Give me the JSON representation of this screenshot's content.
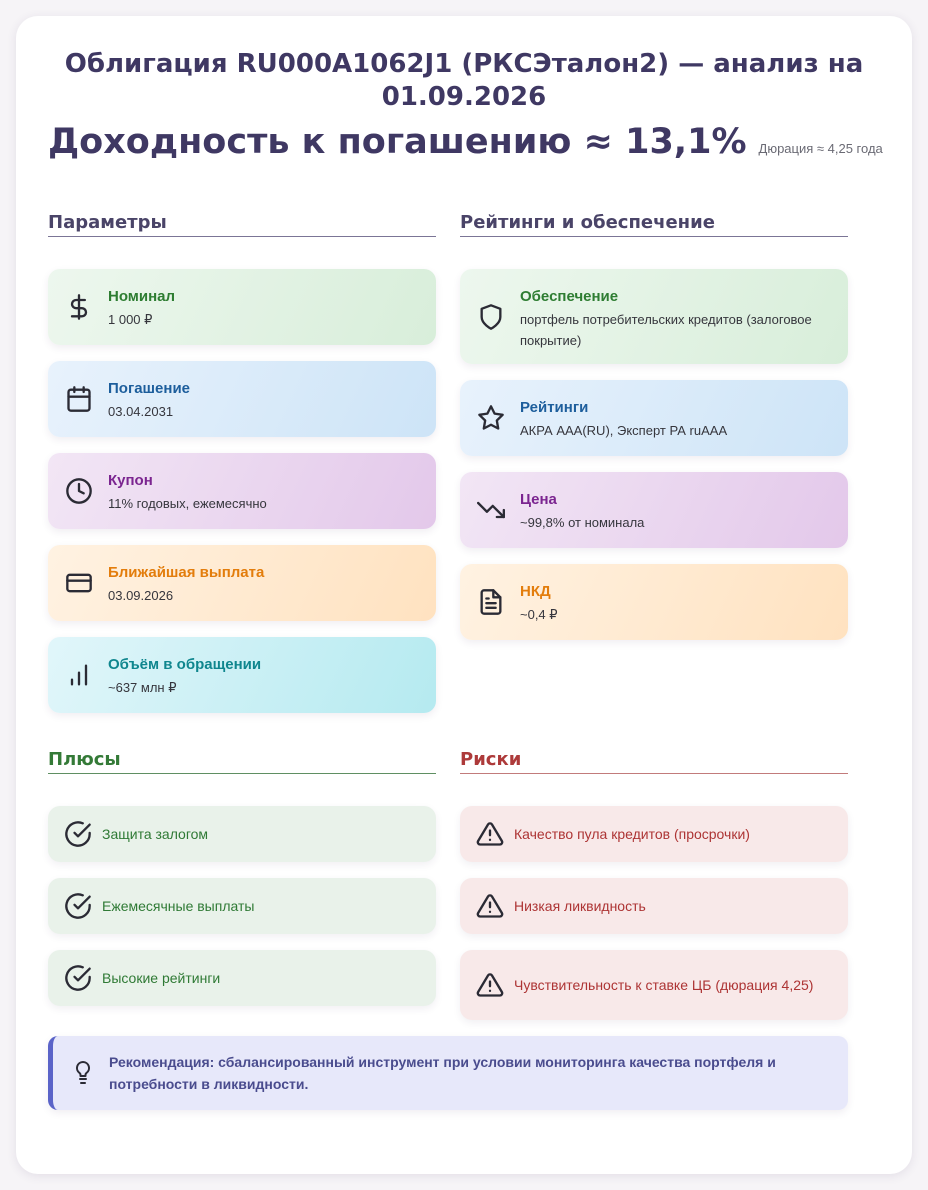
{
  "header": {
    "title": "Облигация RU000A1062J1 (РКСЭталон2) — анализ на 01.09.2026",
    "yield": "Доходность к погашению ≈ 13,1%",
    "duration": "Дюрация ≈ 4,25 года"
  },
  "params": {
    "title": "Параметры",
    "items": [
      {
        "label": "Номинал",
        "value": "1 000 ₽",
        "icon": "dollar-icon",
        "color": "#2e7d32"
      },
      {
        "label": "Погашение",
        "value": "03.04.2031",
        "icon": "calendar-icon",
        "color": "#1d5e9c"
      },
      {
        "label": "Купон",
        "value": "11% годовых, ежемесячно",
        "icon": "clock-icon",
        "color": "#7b2590"
      },
      {
        "label": "Ближайшая выплата",
        "value": "03.09.2026",
        "icon": "credit-card-icon",
        "color": "#e37d0c"
      },
      {
        "label": "Объём в обращении",
        "value": "~637 млн ₽",
        "icon": "bar-chart-icon",
        "color": "#0f868e"
      }
    ]
  },
  "ratings": {
    "title": "Рейтинги и обеспечение",
    "items": [
      {
        "label": "Обеспечение",
        "value": "портфель потребительских кредитов (залоговое покрытие)",
        "icon": "shield-icon",
        "color": "#2e7d32"
      },
      {
        "label": "Рейтинги",
        "value": "АКРА AAA(RU), Эксперт РА ruAAA",
        "icon": "star-icon",
        "color": "#1d5e9c"
      },
      {
        "label": "Цена",
        "value": "~99,8% от номинала",
        "icon": "trending-down-icon",
        "color": "#7b2590"
      },
      {
        "label": "НКД",
        "value": "~0,4 ₽",
        "icon": "document-icon",
        "color": "#e37d0c"
      }
    ]
  },
  "pros": {
    "title": "Плюсы",
    "items": [
      "Защита залогом",
      "Ежемесячные выплаты",
      "Высокие рейтинги"
    ]
  },
  "risks": {
    "title": "Риски",
    "items": [
      "Качество пула кредитов (просрочки)",
      "Низкая ликвидность",
      "Чувствительность к ставке ЦБ (дюрация 4,25)"
    ]
  },
  "recommendation": {
    "text": "Рекомендация: сбалансированный инструмент при условии мониторинга качества портфеля и потребности в ликвидности.",
    "icon": "lightbulb-icon"
  }
}
